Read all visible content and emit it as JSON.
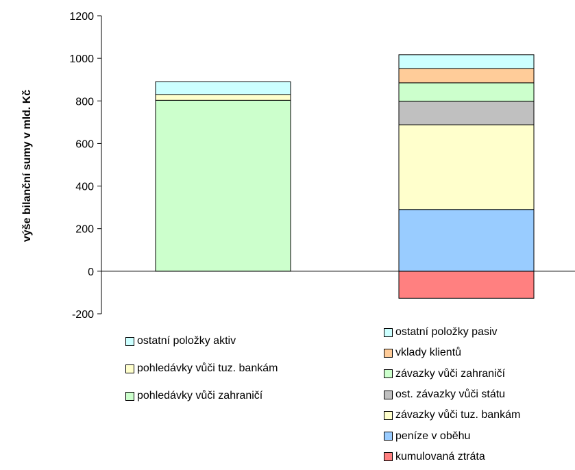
{
  "chart_data": {
    "type": "bar",
    "stacked": true,
    "title": "",
    "xlabel": "",
    "ylabel": "výše bilanční sumy v mld. Kč",
    "ylim": [
      -200,
      1200
    ],
    "yticks": [
      -200,
      0,
      200,
      400,
      600,
      800,
      1000,
      1200
    ],
    "grid": false,
    "categories": [
      "",
      ""
    ],
    "stacks": [
      {
        "segments": [
          {
            "name": "pohledávky vůči zahraničí",
            "value": 803,
            "color": "#ccffcc"
          },
          {
            "name": "pohledávky vůči tuz. bankám",
            "value": 27,
            "color": "#ffffcc"
          },
          {
            "name": "ostatní položky aktiv",
            "value": 60,
            "color": "#ccffff"
          }
        ]
      },
      {
        "segments": [
          {
            "name": "kumulovaná ztráta",
            "value": -127,
            "color": "#ff8080"
          },
          {
            "name": "peníze v oběhu",
            "value": 290,
            "color": "#99ccff"
          },
          {
            "name": "závazky vůči tuz. bankám",
            "value": 398,
            "color": "#ffffcc"
          },
          {
            "name": "ost. závazky vůči státu",
            "value": 110,
            "color": "#c0c0c0"
          },
          {
            "name": "závazky vůči zahraničí",
            "value": 87,
            "color": "#ccffcc"
          },
          {
            "name": "vklady klientů",
            "value": 67,
            "color": "#ffcc99"
          },
          {
            "name": "ostatní položky pasiv",
            "value": 65,
            "color": "#ccffff"
          }
        ]
      }
    ],
    "legend": [
      {
        "placement": "bottom-left",
        "entries": [
          {
            "label": "ostatní položky aktiv",
            "color": "#ccffff"
          },
          {
            "label": "pohledávky vůči tuz. bankám",
            "color": "#ffffcc"
          },
          {
            "label": "pohledávky vůči zahraničí",
            "color": "#ccffcc"
          }
        ]
      },
      {
        "placement": "bottom-right",
        "entries": [
          {
            "label": "ostatní položky pasiv",
            "color": "#ccffff"
          },
          {
            "label": "vklady klientů",
            "color": "#ffcc99"
          },
          {
            "label": "závazky vůči zahraničí",
            "color": "#ccffcc"
          },
          {
            "label": "ost. závazky vůči státu",
            "color": "#c0c0c0"
          },
          {
            "label": "závazky vůči tuz. bankám",
            "color": "#ffffcc"
          },
          {
            "label": "peníze v oběhu",
            "color": "#99ccff"
          },
          {
            "label": "kumulovaná ztráta",
            "color": "#ff8080"
          }
        ]
      }
    ]
  }
}
